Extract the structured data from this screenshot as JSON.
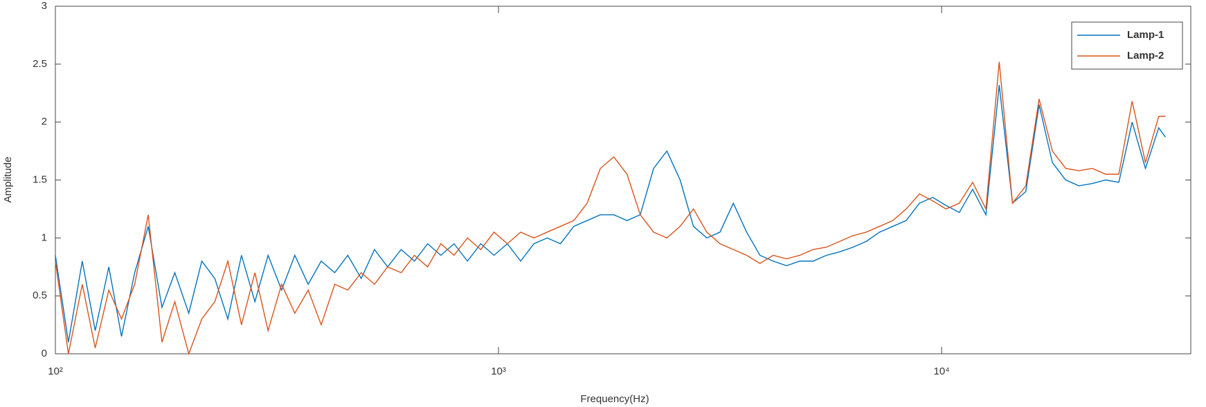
{
  "chart_data": {
    "type": "line",
    "xlabel": "Frequency(Hz)",
    "ylabel": "Amplitude",
    "xscale": "log",
    "xlim": [
      100,
      36500
    ],
    "ylim": [
      0,
      3
    ],
    "xticks": [
      {
        "value": 100,
        "label": "10²"
      },
      {
        "value": 1000,
        "label": "10³"
      },
      {
        "value": 10000,
        "label": "10⁴"
      }
    ],
    "yticks": [
      0,
      0.5,
      1,
      1.5,
      2,
      2.5,
      3
    ],
    "legend": "upper right",
    "x": [
      100,
      107,
      115,
      123,
      132,
      141,
      151,
      162,
      174,
      186,
      200,
      214,
      229,
      245,
      263,
      282,
      302,
      324,
      347,
      372,
      398,
      427,
      457,
      490,
      525,
      562,
      603,
      646,
      692,
      741,
      794,
      851,
      912,
      977,
      1047,
      1122,
      1202,
      1288,
      1380,
      1479,
      1585,
      1698,
      1820,
      1950,
      2089,
      2239,
      2399,
      2570,
      2754,
      2951,
      3162,
      3388,
      3631,
      3890,
      4169,
      4467,
      4786,
      5129,
      5495,
      5888,
      6310,
      6761,
      7244,
      7762,
      8318,
      8913,
      9550,
      10233,
      10965,
      11749,
      12589,
      13490,
      14454,
      15488,
      16596,
      17783,
      19055,
      20417,
      21878,
      23442,
      25119,
      26915,
      28840,
      30903,
      32000
    ],
    "series": [
      {
        "name": "Lamp-1",
        "color": "#0072bd",
        "values": [
          0.85,
          0.1,
          0.8,
          0.2,
          0.75,
          0.15,
          0.7,
          1.1,
          0.4,
          0.7,
          0.35,
          0.8,
          0.65,
          0.3,
          0.85,
          0.45,
          0.85,
          0.55,
          0.85,
          0.6,
          0.8,
          0.7,
          0.85,
          0.65,
          0.9,
          0.75,
          0.9,
          0.8,
          0.95,
          0.85,
          0.95,
          0.8,
          0.95,
          0.85,
          0.95,
          0.8,
          0.95,
          1.0,
          0.95,
          1.1,
          1.15,
          1.2,
          1.2,
          1.15,
          1.2,
          1.6,
          1.75,
          1.5,
          1.1,
          1.0,
          1.05,
          1.3,
          1.05,
          0.85,
          0.8,
          0.76,
          0.8,
          0.8,
          0.85,
          0.88,
          0.92,
          0.97,
          1.05,
          1.1,
          1.15,
          1.3,
          1.35,
          1.28,
          1.22,
          1.42,
          1.2,
          2.32,
          1.3,
          1.4,
          2.15,
          1.65,
          1.5,
          1.45,
          1.47,
          1.5,
          1.48,
          2.0,
          1.6,
          1.95,
          1.87
        ]
      },
      {
        "name": "Lamp-2",
        "color": "#d95319",
        "values": [
          0.8,
          0,
          0.6,
          0.05,
          0.55,
          0.3,
          0.6,
          1.2,
          0.1,
          0.45,
          0,
          0.3,
          0.45,
          0.8,
          0.25,
          0.7,
          0.2,
          0.6,
          0.35,
          0.55,
          0.25,
          0.6,
          0.55,
          0.7,
          0.6,
          0.75,
          0.7,
          0.85,
          0.75,
          0.95,
          0.85,
          1.0,
          0.9,
          1.05,
          0.95,
          1.05,
          1.0,
          1.05,
          1.1,
          1.15,
          1.3,
          1.6,
          1.7,
          1.55,
          1.2,
          1.05,
          1.0,
          1.1,
          1.25,
          1.05,
          0.95,
          0.9,
          0.85,
          0.78,
          0.85,
          0.82,
          0.85,
          0.9,
          0.92,
          0.97,
          1.02,
          1.05,
          1.1,
          1.15,
          1.25,
          1.38,
          1.32,
          1.25,
          1.3,
          1.48,
          1.25,
          2.52,
          1.3,
          1.45,
          2.2,
          1.75,
          1.6,
          1.58,
          1.6,
          1.55,
          1.55,
          2.18,
          1.65,
          2.05,
          2.05
        ]
      }
    ]
  }
}
